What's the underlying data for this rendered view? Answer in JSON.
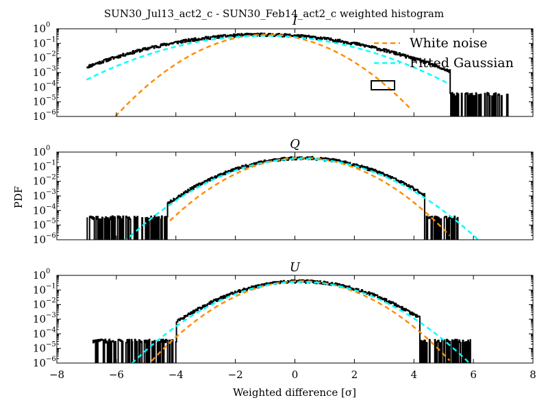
{
  "figure": {
    "title": "SUN30_Jul13_act2_c - SUN30_Feb14_act2_c weighted histogram",
    "xlabel": "Weighted difference [σ]",
    "ylabel": "PDF"
  },
  "colors": {
    "histogram": "#000000",
    "white_noise": "#ff8c00",
    "gaussian": "#00ffff"
  },
  "chart_data": [
    {
      "type": "line",
      "title": "I",
      "yscale": "log",
      "xlim": [
        -8,
        8
      ],
      "ylim": [
        1e-06,
        1
      ],
      "x_ticks": [
        "−8",
        "−6",
        "−4",
        "−2",
        "0",
        "2",
        "4",
        "6",
        "8"
      ],
      "y_ticks": [
        "10",
        "10",
        "10",
        "10",
        "10",
        "10",
        "10"
      ],
      "y_tick_exponents": [
        "−6",
        "−5",
        "−4",
        "−3",
        "−2",
        "−1",
        "0"
      ],
      "legend": {
        "placement": "top-right",
        "entries": [
          "White noise",
          "Fitted Gaussian"
        ]
      },
      "series": [
        {
          "kind": "histogram",
          "x_range": [
            -7.0,
            7.2
          ],
          "center": -1.1,
          "sigma": 1.85,
          "peak": 0.4,
          "noise_range": [
            3.0,
            7.2
          ],
          "noise_level": 3e-05,
          "noise_seed": 11
        },
        {
          "name": "White noise",
          "kind": "gaussian",
          "x_range": [
            -6.25,
            3.9
          ],
          "mean": -0.95,
          "sigma": 1.0,
          "peak": 0.4
        },
        {
          "name": "Fitted Gaussian",
          "kind": "gaussian",
          "x_range": [
            -7.0,
            5.1
          ],
          "mean": -1.05,
          "sigma": 1.6,
          "peak": 0.33
        }
      ]
    },
    {
      "type": "line",
      "title": "Q",
      "yscale": "log",
      "xlim": [
        -8,
        8
      ],
      "ylim": [
        1e-06,
        1
      ],
      "x_ticks": [
        "−8",
        "−6",
        "−4",
        "−2",
        "0",
        "2",
        "4",
        "6",
        "8"
      ],
      "y_ticks": [
        "10",
        "10",
        "10",
        "10",
        "10",
        "10",
        "10"
      ],
      "y_tick_exponents": [
        "−6",
        "−5",
        "−4",
        "−3",
        "−2",
        "−1",
        "0"
      ],
      "series": [
        {
          "kind": "histogram",
          "x_range": [
            -7.0,
            5.5
          ],
          "center": 0.25,
          "sigma": 1.2,
          "peak": 0.4,
          "noise_left": [
            -7.0,
            -4.3
          ],
          "noise_right": [
            4.0,
            5.5
          ],
          "noise_level": 3e-05,
          "noise_seed": 23
        },
        {
          "name": "White noise",
          "kind": "gaussian",
          "x_range": [
            -4.2,
            5.2
          ],
          "mean": 0.25,
          "sigma": 1.0,
          "peak": 0.4
        },
        {
          "name": "Fitted Gaussian",
          "kind": "gaussian",
          "x_range": [
            -6.0,
            6.2
          ],
          "mean": 0.25,
          "sigma": 1.17,
          "peak": 0.35
        }
      ]
    },
    {
      "type": "line",
      "title": "U",
      "yscale": "log",
      "xlim": [
        -8,
        8
      ],
      "ylim": [
        1e-06,
        1
      ],
      "x_ticks": [
        "−8",
        "−6",
        "−4",
        "−2",
        "0",
        "2",
        "4",
        "6",
        "8"
      ],
      "y_ticks": [
        "10",
        "10",
        "10",
        "10",
        "10",
        "10",
        "10"
      ],
      "y_tick_exponents": [
        "−6",
        "−5",
        "−4",
        "−3",
        "−2",
        "−1",
        "0"
      ],
      "series": [
        {
          "kind": "histogram",
          "x_range": [
            -6.8,
            5.9
          ],
          "center": 0.2,
          "sigma": 1.17,
          "peak": 0.4,
          "noise_left": [
            -6.8,
            -4.0
          ],
          "noise_right": [
            4.0,
            5.9
          ],
          "noise_level": 3e-05,
          "noise_seed": 37
        },
        {
          "name": "White noise",
          "kind": "gaussian",
          "x_range": [
            -5.0,
            5.2
          ],
          "mean": 0.2,
          "sigma": 1.0,
          "peak": 0.4
        },
        {
          "name": "Fitted Gaussian",
          "kind": "gaussian",
          "x_range": [
            -5.7,
            6.2
          ],
          "mean": 0.2,
          "sigma": 1.12,
          "peak": 0.36
        }
      ]
    }
  ]
}
